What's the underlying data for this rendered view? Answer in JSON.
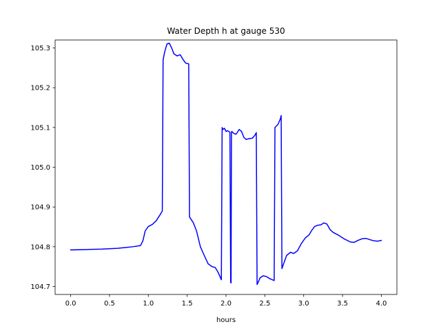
{
  "chart_data": {
    "type": "line",
    "title": "Water Depth h at gauge 530",
    "xlabel": "hours",
    "ylabel": "",
    "xlim": [
      -0.2,
      4.2
    ],
    "ylim": [
      104.68,
      105.32
    ],
    "xticks": [
      0.0,
      0.5,
      1.0,
      1.5,
      2.0,
      2.5,
      3.0,
      3.5,
      4.0
    ],
    "xtick_labels": [
      "0.0",
      "0.5",
      "1.0",
      "1.5",
      "2.0",
      "2.5",
      "3.0",
      "3.5",
      "4.0"
    ],
    "yticks": [
      104.7,
      104.8,
      104.9,
      105.0,
      105.1,
      105.2,
      105.3
    ],
    "ytick_labels": [
      "104.7",
      "104.8",
      "104.9",
      "105.0",
      "105.1",
      "105.2",
      "105.3"
    ],
    "grid": false,
    "legend": "none",
    "series": [
      {
        "color": "#0000ff",
        "x": [
          0.0,
          0.2,
          0.4,
          0.6,
          0.7,
          0.8,
          0.9,
          0.93,
          0.96,
          1.0,
          1.05,
          1.1,
          1.15,
          1.18,
          1.19,
          1.21,
          1.24,
          1.27,
          1.3,
          1.33,
          1.37,
          1.41,
          1.45,
          1.48,
          1.52,
          1.53,
          1.54,
          1.58,
          1.62,
          1.67,
          1.72,
          1.77,
          1.82,
          1.86,
          1.9,
          1.94,
          1.95,
          1.96,
          1.98,
          2.0,
          2.02,
          2.05,
          2.06,
          2.065,
          2.07,
          2.075,
          2.1,
          2.13,
          2.17,
          2.2,
          2.23,
          2.26,
          2.3,
          2.34,
          2.37,
          2.39,
          2.4,
          2.44,
          2.48,
          2.52,
          2.56,
          2.62,
          2.63,
          2.67,
          2.7,
          2.71,
          2.72,
          2.75,
          2.78,
          2.83,
          2.87,
          2.92,
          2.97,
          3.02,
          3.07,
          3.1,
          3.14,
          3.18,
          3.22,
          3.26,
          3.3,
          3.34,
          3.38,
          3.44,
          3.52,
          3.6,
          3.65,
          3.7,
          3.75,
          3.8,
          3.85,
          3.9,
          3.95,
          4.0
        ],
        "y": [
          104.792,
          104.793,
          104.794,
          104.796,
          104.798,
          104.8,
          104.803,
          104.815,
          104.84,
          104.851,
          104.856,
          104.865,
          104.88,
          104.89,
          105.27,
          105.29,
          105.31,
          105.312,
          105.3,
          105.285,
          105.28,
          105.283,
          105.27,
          105.262,
          105.26,
          104.875,
          104.872,
          104.86,
          104.84,
          104.8,
          104.778,
          104.757,
          104.75,
          104.748,
          104.735,
          104.717,
          105.1,
          105.095,
          105.098,
          105.09,
          105.092,
          105.088,
          104.71,
          104.709,
          105.088,
          105.09,
          105.085,
          105.083,
          105.095,
          105.09,
          105.075,
          105.07,
          105.072,
          105.073,
          105.08,
          105.087,
          104.705,
          104.722,
          104.727,
          104.725,
          104.72,
          104.715,
          105.1,
          105.108,
          105.122,
          105.13,
          104.745,
          104.762,
          104.778,
          104.786,
          104.783,
          104.79,
          104.808,
          104.822,
          104.83,
          104.84,
          104.851,
          104.854,
          104.855,
          104.86,
          104.857,
          104.843,
          104.836,
          104.83,
          104.82,
          104.812,
          104.811,
          104.816,
          104.82,
          104.821,
          104.818,
          104.815,
          104.814,
          104.816
        ]
      }
    ]
  }
}
